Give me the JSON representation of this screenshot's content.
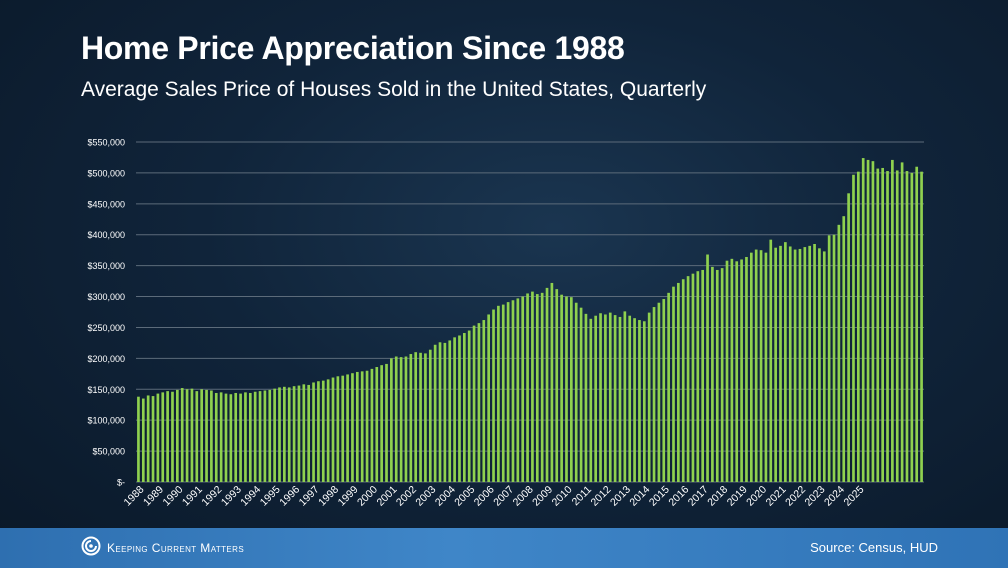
{
  "header": {
    "title": "Home Price Appreciation Since 1988",
    "subtitle": "Average Sales Price of Houses Sold in the United States, Quarterly"
  },
  "footer": {
    "brand": "Keeping Current Matters",
    "source": "Source: Census, HUD"
  },
  "colors": {
    "bar": "#8fd14f",
    "grid": "#5c6b7a",
    "background": "#10243a",
    "footer": "#3478bb",
    "text": "#ffffff"
  },
  "icons": {
    "brand_logo": "kcm-swirl-icon"
  },
  "chart_data": {
    "type": "bar",
    "title": "Home Price Appreciation Since 1988",
    "subtitle": "Average Sales Price of Houses Sold in the United States, Quarterly",
    "xlabel": "",
    "ylabel": "",
    "ylim": [
      0,
      550000
    ],
    "y_ticks": [
      0,
      50000,
      100000,
      150000,
      200000,
      250000,
      300000,
      350000,
      400000,
      450000,
      500000,
      550000
    ],
    "y_tick_labels": [
      "$-",
      "$50,000",
      "$100,000",
      "$150,000",
      "$200,000",
      "$250,000",
      "$300,000",
      "$350,000",
      "$400,000",
      "$450,000",
      "$500,000",
      "$550,000"
    ],
    "x_tick_labels": [
      "1988",
      "1989",
      "1990",
      "1991",
      "1992",
      "1993",
      "1994",
      "1995",
      "1996",
      "1997",
      "1998",
      "1999",
      "2000",
      "2001",
      "2002",
      "2003",
      "2004",
      "2005",
      "2006",
      "2007",
      "2008",
      "2009",
      "2010",
      "2011",
      "2012",
      "2013",
      "2014",
      "2015",
      "2016",
      "2017",
      "2018",
      "2019",
      "2020",
      "2021",
      "2022",
      "2023",
      "2024",
      "2025"
    ],
    "grid": true,
    "legend": "none",
    "start_year": 1988,
    "values": [
      138000,
      135000,
      140000,
      139000,
      143000,
      145000,
      147000,
      146000,
      149000,
      152000,
      150000,
      151000,
      147000,
      150000,
      149000,
      148000,
      144000,
      145000,
      143000,
      142000,
      144000,
      143000,
      145000,
      144000,
      146000,
      147000,
      148000,
      149000,
      151000,
      153000,
      154000,
      153000,
      155000,
      156000,
      158000,
      157000,
      161000,
      163000,
      164000,
      166000,
      169000,
      171000,
      172000,
      174000,
      176000,
      178000,
      179000,
      180000,
      183000,
      186000,
      189000,
      191000,
      200000,
      203000,
      202000,
      203000,
      207000,
      210000,
      209000,
      208000,
      214000,
      222000,
      226000,
      225000,
      229000,
      234000,
      237000,
      241000,
      245000,
      253000,
      257000,
      262000,
      271000,
      279000,
      285000,
      287000,
      291000,
      294000,
      297000,
      300000,
      305000,
      308000,
      304000,
      306000,
      314000,
      322000,
      312000,
      303000,
      300000,
      299000,
      290000,
      282000,
      272000,
      264000,
      269000,
      273000,
      271000,
      274000,
      270000,
      267000,
      276000,
      269000,
      265000,
      262000,
      260000,
      274000,
      283000,
      290000,
      296000,
      306000,
      316000,
      322000,
      328000,
      333000,
      337000,
      341000,
      343000,
      368000,
      348000,
      343000,
      346000,
      358000,
      361000,
      357000,
      360000,
      364000,
      371000,
      376000,
      375000,
      371000,
      392000,
      379000,
      382000,
      388000,
      381000,
      376000,
      377000,
      380000,
      382000,
      385000,
      378000,
      373000,
      399000,
      400000,
      416000,
      430000,
      467000,
      497000,
      502000,
      524000,
      521000,
      519000,
      507000,
      508000,
      503000,
      521000,
      504000,
      517000,
      503000,
      500000,
      510000,
      502000
    ]
  }
}
